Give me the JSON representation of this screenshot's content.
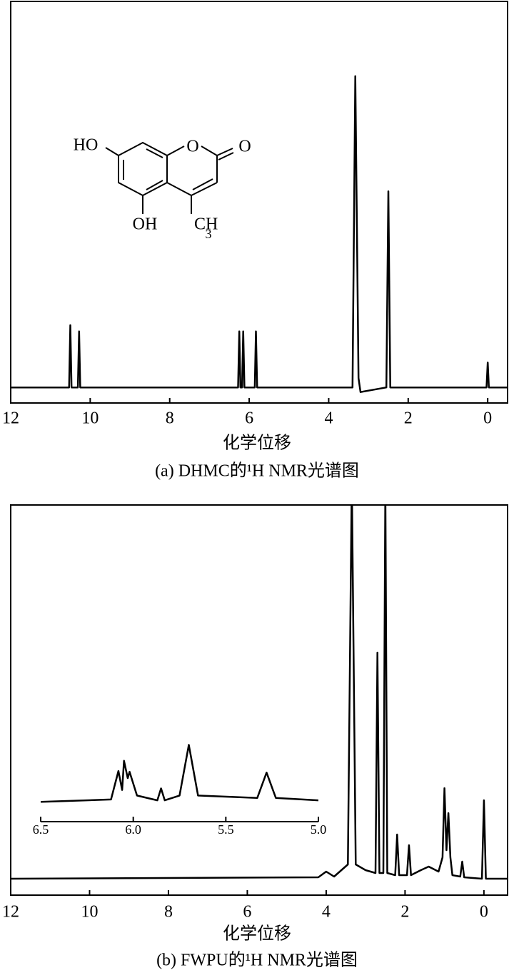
{
  "chart_data": [
    {
      "type": "line",
      "title": "(a) DHMC的¹H NMR光谱图",
      "xlabel": "化学位移",
      "annotations": [
        "HO",
        "O",
        "O",
        "OH",
        "CH",
        "3"
      ],
      "x": [
        12,
        10.53,
        10.5,
        10.47,
        10.31,
        10.28,
        10.25,
        6.28,
        6.25,
        6.22,
        6.18,
        6.15,
        6.12,
        5.86,
        5.83,
        5.8,
        3.4,
        3.33,
        3.25,
        3.2,
        2.55,
        2.5,
        2.45,
        0.03,
        0,
        -0.03,
        -0.5
      ],
      "y": [
        0,
        0,
        20,
        0,
        0,
        18,
        0,
        0,
        18,
        0,
        0,
        18,
        0,
        0,
        18,
        0,
        0,
        100,
        3,
        -1.5,
        0,
        63,
        0,
        0,
        8,
        0,
        0
      ],
      "xlim": [
        12,
        -0.5
      ],
      "ylim": [
        -5,
        124
      ],
      "xticks": [
        12,
        10,
        8,
        6,
        4,
        2,
        0
      ],
      "color": "#000000"
    },
    {
      "type": "line",
      "title": "(b) FWPU的¹H NMR光谱图",
      "xlabel": "化学位移",
      "x": [
        12,
        4.2,
        4.0,
        3.8,
        3.45,
        3.35,
        3.25,
        3.0,
        2.75,
        2.7,
        2.65,
        2.55,
        2.5,
        2.45,
        2.25,
        2.2,
        2.15,
        1.95,
        1.9,
        1.85,
        1.6,
        1.4,
        1.15,
        1.05,
        1.0,
        0.95,
        0.9,
        0.85,
        0.8,
        0.6,
        0.55,
        0.5,
        0.05,
        0,
        -0.05,
        -0.6
      ],
      "y": [
        0,
        2,
        10,
        3,
        20,
        560,
        20,
        12,
        8,
        317,
        8,
        8,
        550,
        8,
        5,
        62,
        5,
        5,
        47,
        5,
        12,
        17,
        10,
        30,
        127,
        40,
        92,
        30,
        5,
        3,
        24,
        2,
        0,
        110,
        0,
        0
      ],
      "xlim": [
        12,
        -0.6
      ],
      "ylim": [
        -23,
        524
      ],
      "xticks": [
        12,
        10,
        8,
        6,
        4,
        2,
        0
      ],
      "color": "#000000"
    },
    {
      "type": "line",
      "x": [
        6.5,
        6.12,
        6.08,
        6.06,
        6.05,
        6.03,
        6.02,
        5.98,
        5.87,
        5.85,
        5.83,
        5.75,
        5.7,
        5.65,
        5.33,
        5.28,
        5.23,
        5.0
      ],
      "y": [
        0,
        3,
        39,
        15,
        52,
        30,
        38,
        8,
        2,
        17,
        2,
        8,
        72,
        8,
        5,
        37,
        5,
        2
      ],
      "xlim": [
        6.5,
        5.0
      ],
      "ylim": [
        -25,
        85
      ],
      "xticks": [
        6.5,
        {
          "value": 6.0,
          "label": "6.0"
        },
        5.5,
        {
          "value": 5.0,
          "label": "5.0"
        }
      ],
      "color": "#000000"
    }
  ]
}
